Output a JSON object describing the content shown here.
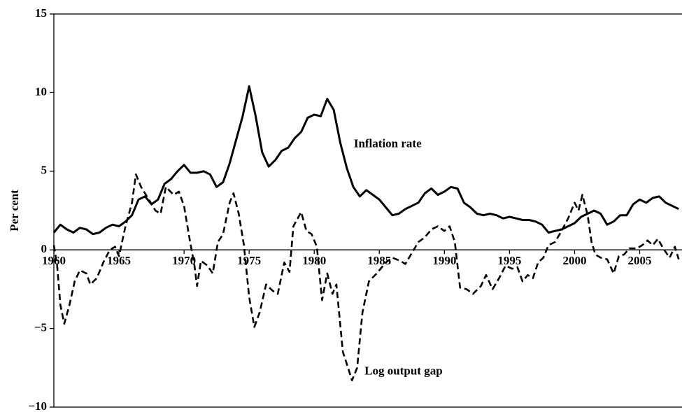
{
  "chart_data": {
    "type": "line",
    "ylabel": "Per cent",
    "xlim": [
      1960,
      2008.25
    ],
    "ylim": [
      -10,
      15
    ],
    "xticks": [
      1960,
      1965,
      1970,
      1975,
      1980,
      1985,
      1990,
      1995,
      2000,
      2005
    ],
    "yticks": [
      {
        "value": -10,
        "label": "−10"
      },
      {
        "value": -5,
        "label": "−5"
      },
      0,
      5,
      10,
      15
    ],
    "series": [
      {
        "name": "Inflation rate",
        "color": "#000000",
        "dash": false,
        "x": [
          1960,
          1960.5,
          1961,
          1961.5,
          1962,
          1962.5,
          1963,
          1963.5,
          1964,
          1964.5,
          1965,
          1965.5,
          1966,
          1966.5,
          1967,
          1967.5,
          1968,
          1968.5,
          1969,
          1969.5,
          1970,
          1970.5,
          1971,
          1971.5,
          1972,
          1972.5,
          1973,
          1973.5,
          1974,
          1974.5,
          1975,
          1975.5,
          1976,
          1976.5,
          1977,
          1977.5,
          1978,
          1978.5,
          1979,
          1979.5,
          1980,
          1980.5,
          1981,
          1981.5,
          1982,
          1982.5,
          1983,
          1983.5,
          1984,
          1984.5,
          1985,
          1985.5,
          1986,
          1986.5,
          1987,
          1987.5,
          1988,
          1988.5,
          1989,
          1989.5,
          1990,
          1990.5,
          1991,
          1991.5,
          1992,
          1992.5,
          1993,
          1993.5,
          1994,
          1994.5,
          1995,
          1995.5,
          1996,
          1996.5,
          1997,
          1997.5,
          1998,
          1998.5,
          1999,
          1999.5,
          2000,
          2000.5,
          2001,
          2001.5,
          2002,
          2002.5,
          2003,
          2003.5,
          2004,
          2004.5,
          2005,
          2005.5,
          2006,
          2006.5,
          2007,
          2007.5,
          2008
        ],
        "values": [
          1.1,
          1.6,
          1.3,
          1.1,
          1.4,
          1.3,
          1.0,
          1.1,
          1.4,
          1.6,
          1.5,
          1.8,
          2.2,
          3.2,
          3.4,
          2.9,
          3.2,
          4.2,
          4.5,
          5.0,
          5.4,
          4.9,
          4.9,
          5.0,
          4.8,
          4.0,
          4.3,
          5.5,
          7.0,
          8.5,
          10.4,
          8.5,
          6.2,
          5.3,
          5.7,
          6.3,
          6.5,
          7.1,
          7.5,
          8.4,
          8.6,
          8.5,
          9.6,
          8.9,
          6.8,
          5.2,
          4.0,
          3.4,
          3.8,
          3.5,
          3.2,
          2.7,
          2.2,
          2.3,
          2.6,
          2.8,
          3.0,
          3.6,
          3.9,
          3.5,
          3.7,
          4.0,
          3.9,
          3.0,
          2.7,
          2.3,
          2.2,
          2.3,
          2.2,
          2.0,
          2.1,
          2.0,
          1.9,
          1.9,
          1.8,
          1.6,
          1.1,
          1.2,
          1.3,
          1.5,
          1.7,
          2.1,
          2.3,
          2.5,
          2.3,
          1.6,
          1.8,
          2.2,
          2.2,
          2.9,
          3.2,
          3.0,
          3.3,
          3.4,
          3.0,
          2.8,
          2.6
        ]
      },
      {
        "name": "Log output gap",
        "color": "#000000",
        "dash": true,
        "x": [
          1960,
          1960.25,
          1960.5,
          1960.8,
          1961.2,
          1961.6,
          1962,
          1962.5,
          1962.8,
          1963.3,
          1963.8,
          1964.3,
          1964.7,
          1965,
          1965.5,
          1966,
          1966.3,
          1966.7,
          1967.3,
          1967.8,
          1968.2,
          1968.6,
          1969.2,
          1969.6,
          1970,
          1970.4,
          1970.8,
          1971,
          1971.3,
          1971.8,
          1972.2,
          1972.6,
          1973,
          1973.5,
          1973.8,
          1974.2,
          1974.6,
          1975,
          1975.4,
          1975.8,
          1976.3,
          1976.8,
          1977.2,
          1977.7,
          1978.1,
          1978.4,
          1979,
          1979.4,
          1979.8,
          1980.2,
          1980.6,
          1981,
          1981.4,
          1981.7,
          1982.2,
          1982.6,
          1982.9,
          1983.3,
          1983.7,
          1984.2,
          1984.8,
          1985.5,
          1986,
          1986.6,
          1987,
          1987.5,
          1988,
          1988.5,
          1989,
          1989.5,
          1990,
          1990.4,
          1990.8,
          1991.2,
          1991.7,
          1992.2,
          1992.8,
          1993.2,
          1993.7,
          1994.2,
          1994.7,
          1995.2,
          1995.6,
          1996,
          1996.4,
          1996.8,
          1997.2,
          1997.6,
          1998,
          1998.5,
          1999,
          1999.5,
          2000,
          2000.3,
          2000.6,
          2001,
          2001.3,
          2001.6,
          2002,
          2002.5,
          2003,
          2003.4,
          2003.8,
          2004.2,
          2004.8,
          2005.2,
          2005.6,
          2006,
          2006.4,
          2006.8,
          2007.3,
          2007.7,
          2008
        ],
        "values": [
          0.3,
          -1,
          -3.5,
          -4.7,
          -3.5,
          -2,
          -1.3,
          -1.5,
          -2.2,
          -1.8,
          -0.8,
          0,
          0.2,
          -0.4,
          1.5,
          3.0,
          4.8,
          4.0,
          3.2,
          2.5,
          2.3,
          4.0,
          3.5,
          3.7,
          2.8,
          0.8,
          -1.0,
          -2.3,
          -0.7,
          -1.0,
          -1.5,
          0.5,
          1.0,
          3.0,
          3.6,
          2.3,
          0.3,
          -3.0,
          -4.9,
          -4.0,
          -2.2,
          -2.6,
          -2.8,
          -0.8,
          -1.4,
          1.5,
          2.4,
          1.2,
          1.0,
          0.2,
          -3.2,
          -1.5,
          -2.8,
          -2.2,
          -6.5,
          -7.5,
          -8.3,
          -7.5,
          -4.0,
          -2.0,
          -1.5,
          -0.8,
          -0.5,
          -0.7,
          -0.9,
          -0.2,
          0.5,
          0.8,
          1.3,
          1.5,
          1.2,
          1.5,
          0.5,
          -2.4,
          -2.5,
          -2.8,
          -2.3,
          -1.6,
          -2.5,
          -1.8,
          -1.0,
          -1.2,
          -1.1,
          -2.0,
          -1.6,
          -1.8,
          -0.8,
          -0.5,
          0.3,
          0.5,
          1.2,
          2.0,
          3.0,
          2.5,
          3.5,
          2.2,
          0.5,
          -0.3,
          -0.5,
          -0.6,
          -1.5,
          -0.4,
          -0.3,
          0.1,
          0.1,
          0.3,
          0.6,
          0.3,
          0.7,
          0.1,
          -0.5,
          0.2,
          -0.6
        ]
      }
    ]
  }
}
